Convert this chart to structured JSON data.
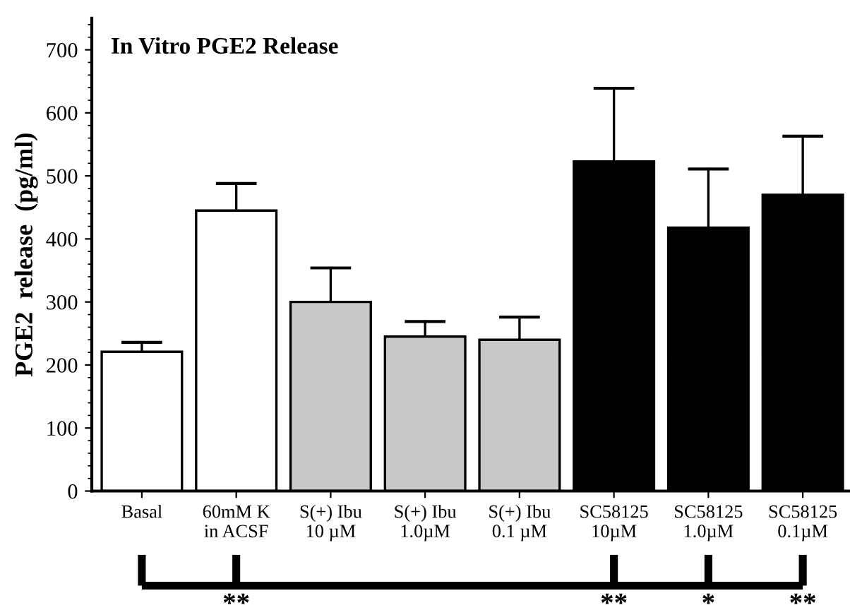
{
  "chart_data": {
    "type": "bar",
    "title": "In Vitro PGE2 Release",
    "ylabel": "PGE2  release  (pg/ml)",
    "categories": [
      "Basal",
      "60mM K\nin ACSF",
      "S(+) Ibu\n10 µM",
      "S(+) Ibu\n1.0µM",
      "S(+) Ibu\n0.1 µM",
      "SC58125\n10µM",
      "SC58125\n1.0µM",
      "SC58125\n0.1µM"
    ],
    "values": [
      221,
      445,
      300,
      245,
      240,
      523,
      418,
      470
    ],
    "errors": [
      [
        221,
        236
      ],
      [
        445,
        488
      ],
      [
        300,
        354
      ],
      [
        245,
        269
      ],
      [
        240,
        276
      ],
      [
        523,
        639
      ],
      [
        418,
        511
      ],
      [
        470,
        563
      ]
    ],
    "colors": [
      "#ffffff",
      "#ffffff",
      "#c8c8c8",
      "#c8c8c8",
      "#c8c8c8",
      "#000000",
      "#000000",
      "#000000"
    ],
    "ylim": [
      0,
      750
    ],
    "yticks": [
      0,
      100,
      200,
      300,
      400,
      500,
      600,
      700
    ],
    "grid": false,
    "annotations": [
      {
        "text": "**",
        "x": "60mM K\nin ACSF"
      },
      {
        "text": "**",
        "x": "SC58125\n10µM"
      },
      {
        "text": "*",
        "x": "SC58125\n1.0µM"
      },
      {
        "text": "**",
        "x": "SC58125\n0.1µM"
      }
    ]
  }
}
